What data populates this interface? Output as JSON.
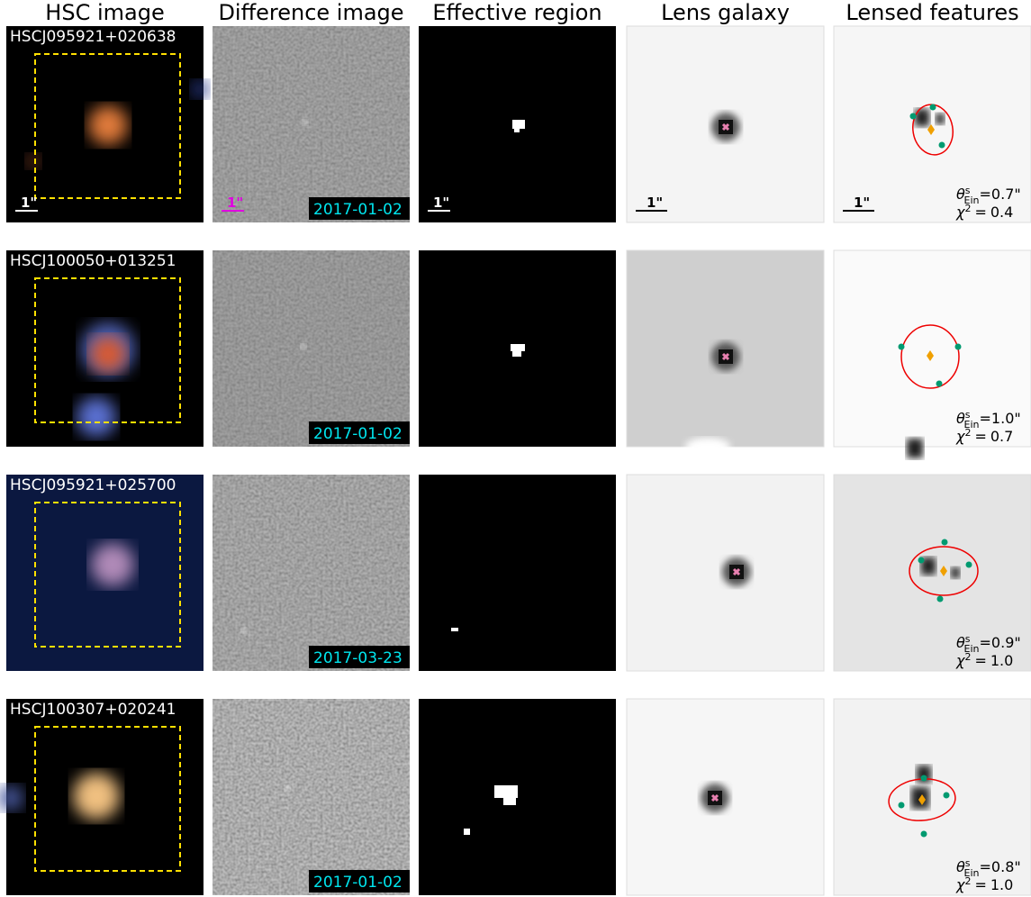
{
  "columns": [
    "HSC image",
    "Difference image",
    "Effective region",
    "Lens galaxy",
    "Lensed features"
  ],
  "scale_label": "1\"",
  "theta_symbol": "θ",
  "theta_sup": "s",
  "theta_sub": "Ein",
  "chi_symbol": "χ",
  "chi_sup": "2",
  "equals": "=",
  "rows": [
    {
      "id": "HSCJ095921+020638",
      "date": "2017-01-02",
      "einstein_radius": "0.7\"",
      "chi2": "0.4"
    },
    {
      "id": "HSCJ100050+013251",
      "date": "2017-01-02",
      "einstein_radius": "1.0\"",
      "chi2": "0.7"
    },
    {
      "id": "HSCJ095921+025700",
      "date": "2017-03-23",
      "einstein_radius": "0.9\"",
      "chi2": "1.0"
    },
    {
      "id": "HSCJ100307+020241",
      "date": "2017-01-02",
      "einstein_radius": "0.8\"",
      "chi2": "1.0"
    }
  ]
}
